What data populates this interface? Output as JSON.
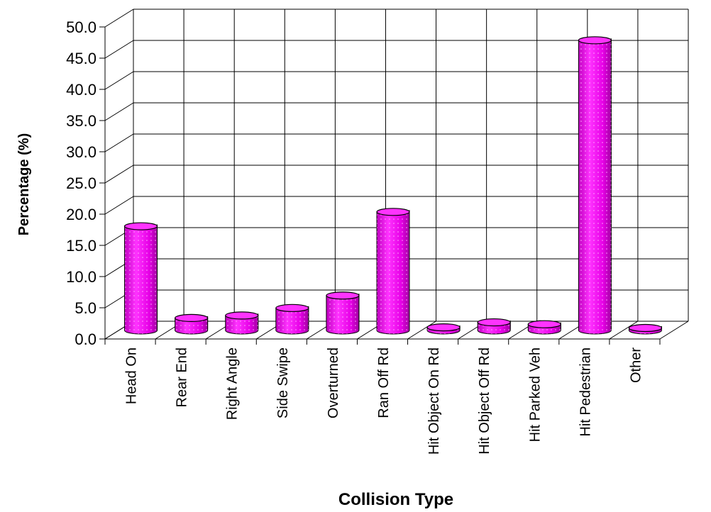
{
  "chart_data": {
    "type": "bar",
    "title": "",
    "xlabel": "Collision Type",
    "ylabel": "Percentage (%)",
    "ylim": [
      0,
      50
    ],
    "y_ticks": [
      "0.0",
      "5.0",
      "10.0",
      "15.0",
      "20.0",
      "25.0",
      "30.0",
      "35.0",
      "40.0",
      "45.0",
      "50.0"
    ],
    "categories": [
      "Head On",
      "Rear End",
      "Right Angle",
      "Side Swipe",
      "Overturned",
      "Ran Off Rd",
      "Hit Object On Rd",
      "Hit Object Off Rd",
      "Hit Parked Veh",
      "Hit Pedestrian",
      "Other"
    ],
    "values": [
      16.7,
      2.0,
      2.4,
      3.6,
      5.6,
      19.0,
      0.5,
      1.3,
      1.0,
      46.5,
      0.4
    ],
    "grid": true,
    "legend": "none",
    "style": "3d-cylinder",
    "bar_color": "#ff00ff"
  }
}
